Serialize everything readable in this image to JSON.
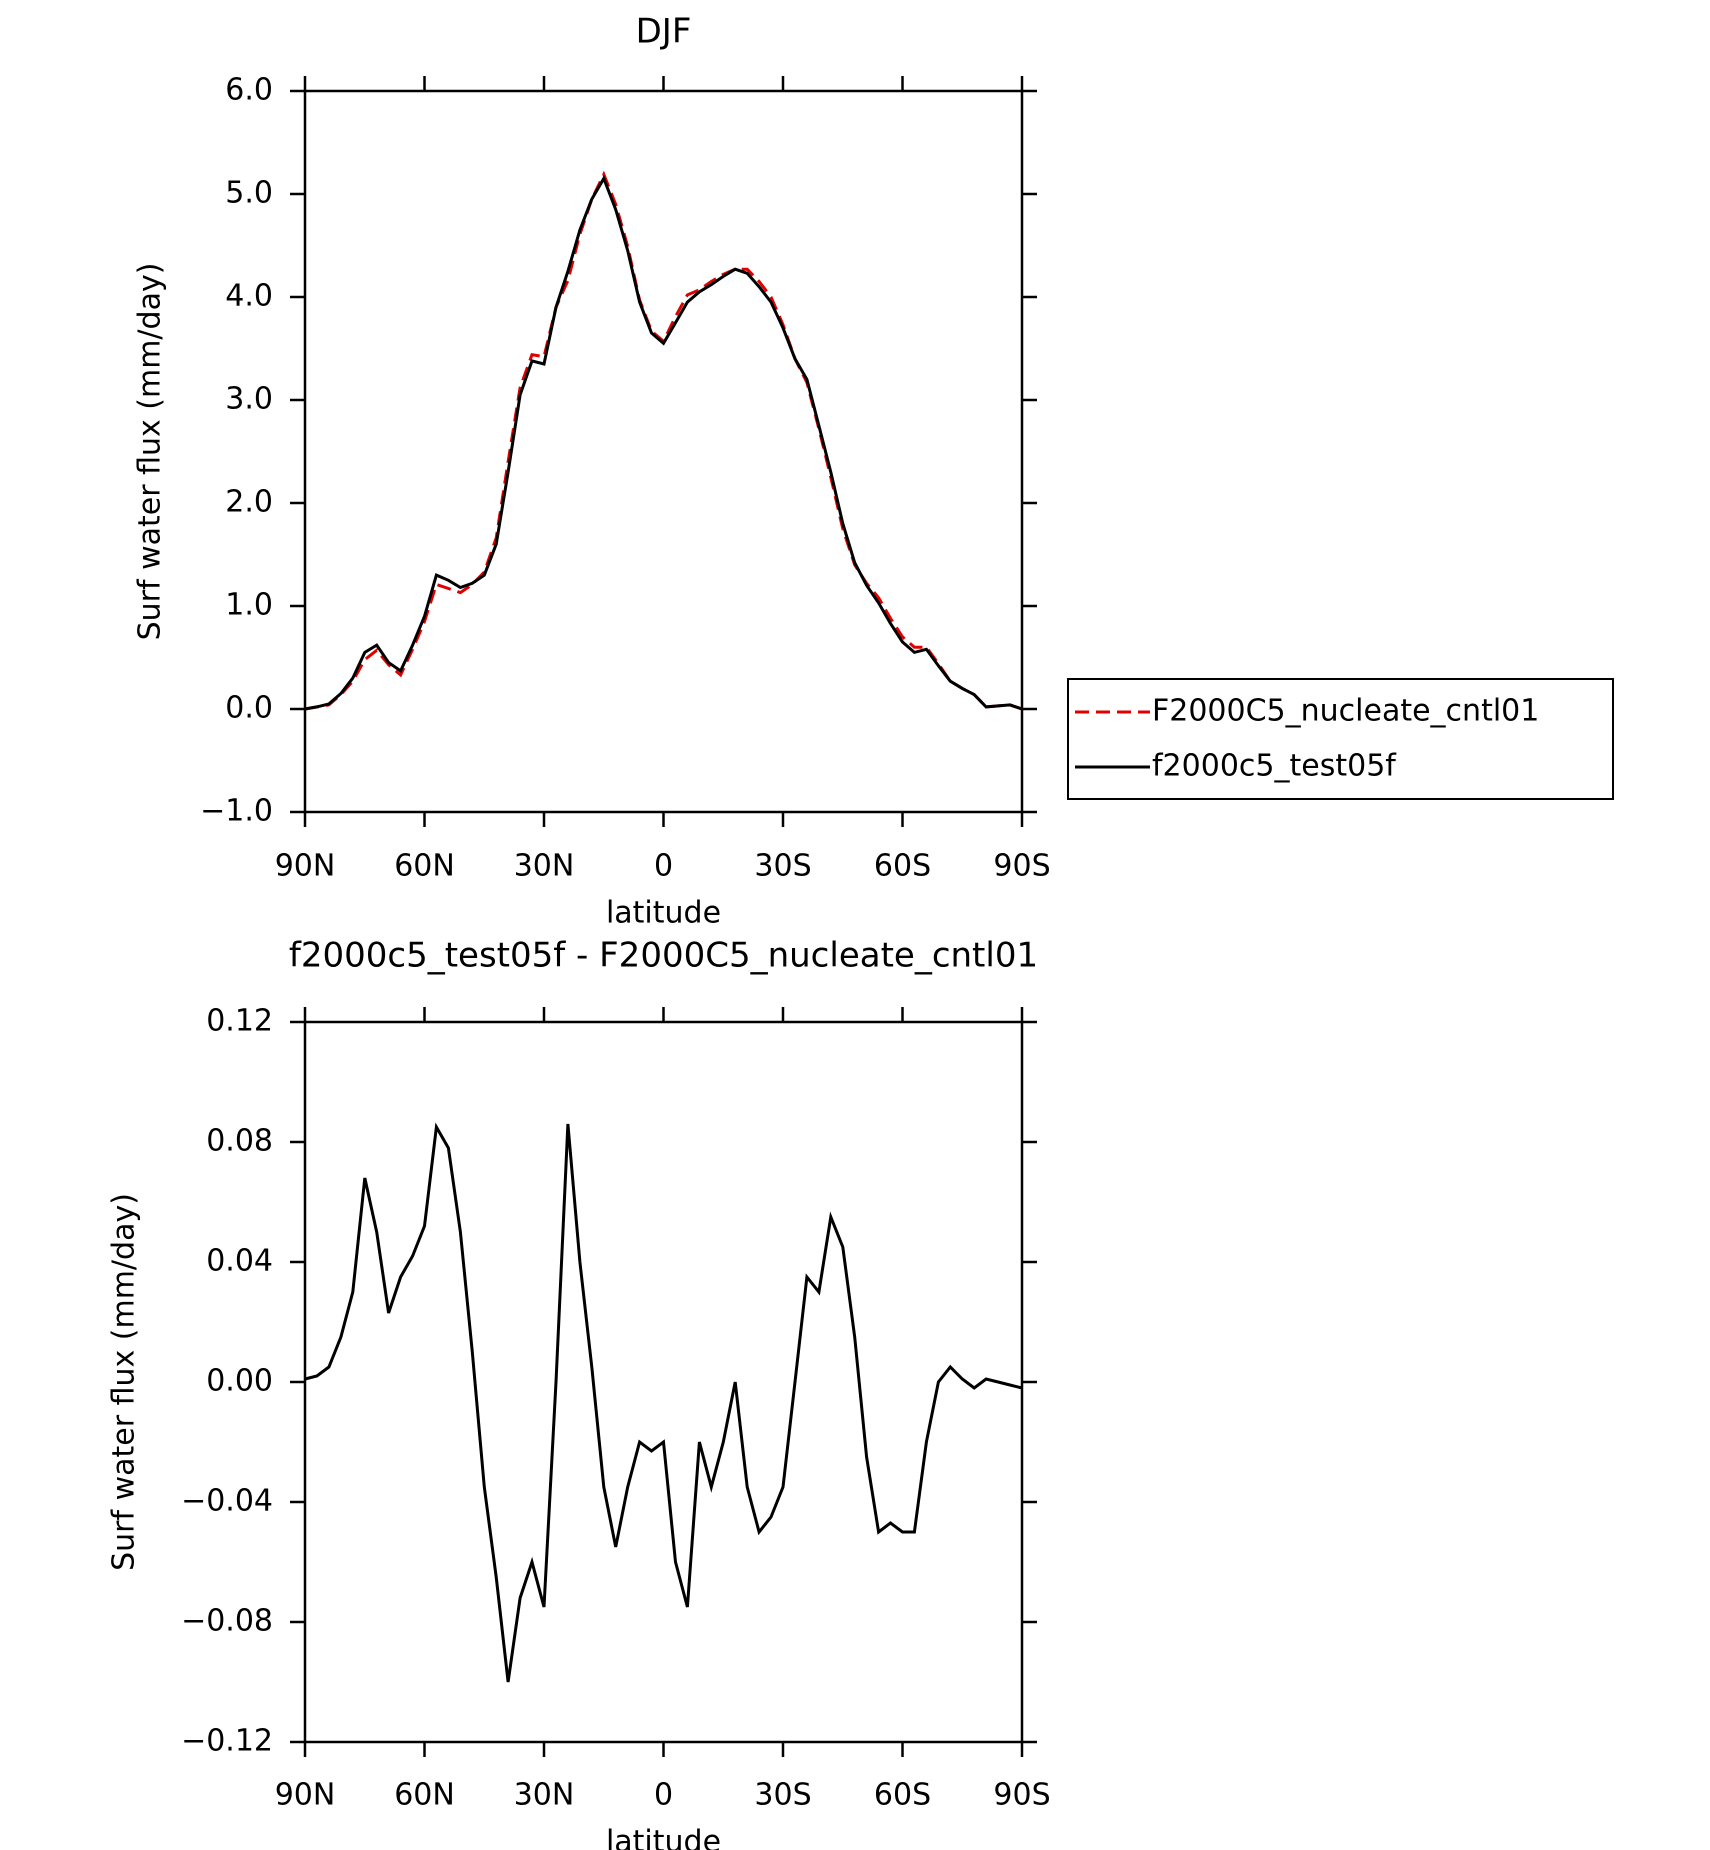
{
  "chart_data": [
    {
      "type": "line",
      "title": "DJF",
      "ylabel": "Surf water flux (mm/day)",
      "xlabel": "latitude",
      "x": [
        90,
        87,
        84,
        81,
        78,
        75,
        72,
        69,
        66,
        63,
        60,
        57,
        54,
        51,
        48,
        45,
        42,
        39,
        36,
        33,
        30,
        27,
        24,
        21,
        18,
        15,
        12,
        9,
        6,
        3,
        0,
        -3,
        -6,
        -9,
        -12,
        -15,
        -18,
        -21,
        -24,
        -27,
        -30,
        -33,
        -36,
        -39,
        -42,
        -45,
        -48,
        -51,
        -54,
        -57,
        -60,
        -63,
        -66,
        -69,
        -72,
        -75,
        -78,
        -81,
        -84,
        -87,
        -90
      ],
      "xlim": [
        90,
        -90
      ],
      "xticks": [
        {
          "value": 90,
          "label": "90N"
        },
        {
          "value": 60,
          "label": "60N"
        },
        {
          "value": 30,
          "label": "30N"
        },
        0,
        {
          "value": -30,
          "label": "30S"
        },
        {
          "value": -60,
          "label": "60S"
        },
        {
          "value": -90,
          "label": "90S"
        }
      ],
      "ylim": [
        -1,
        6
      ],
      "yticks": [
        {
          "value": -1,
          "label": "−1.0"
        },
        {
          "value": 0,
          "label": "0.0"
        },
        {
          "value": 1,
          "label": "1.0"
        },
        {
          "value": 2,
          "label": "2.0"
        },
        {
          "value": 3,
          "label": "3.0"
        },
        {
          "value": 4,
          "label": "4.0"
        },
        {
          "value": 5,
          "label": "5.0"
        },
        {
          "value": 6,
          "label": "6.0"
        }
      ],
      "legend": "right",
      "series": [
        {
          "name": "F2000C5_nucleate_cntl01",
          "color": "#e00000",
          "dash": true,
          "values": [
            0,
            0.02,
            0.04,
            0.14,
            0.27,
            0.48,
            0.57,
            0.43,
            0.33,
            0.58,
            0.85,
            1.21,
            1.17,
            1.13,
            1.21,
            1.33,
            1.66,
            2.4,
            3.12,
            3.44,
            3.42,
            3.9,
            4.16,
            4.61,
            4.95,
            5.19,
            4.9,
            4.49,
            3.97,
            3.67,
            3.57,
            3.81,
            4.02,
            4.07,
            4.15,
            4.22,
            4.27,
            4.27,
            4.15,
            4.0,
            3.73,
            3.4,
            3.17,
            2.72,
            2.25,
            1.75,
            1.4,
            1.22,
            1.08,
            0.88,
            0.7,
            0.6,
            0.6,
            0.44,
            0.27,
            0.2,
            0.14,
            0.02,
            0.03,
            0.04,
            0
          ]
        },
        {
          "name": "f2000c5_test05f",
          "color": "#000000",
          "dash": false,
          "values": [
            0,
            0.02,
            0.05,
            0.15,
            0.3,
            0.55,
            0.62,
            0.45,
            0.37,
            0.62,
            0.9,
            1.3,
            1.25,
            1.18,
            1.22,
            1.3,
            1.6,
            2.3,
            3.05,
            3.38,
            3.35,
            3.9,
            4.25,
            4.65,
            4.95,
            5.15,
            4.85,
            4.45,
            3.95,
            3.65,
            3.55,
            3.75,
            3.95,
            4.05,
            4.12,
            4.2,
            4.27,
            4.23,
            4.1,
            3.95,
            3.7,
            3.4,
            3.2,
            2.75,
            2.3,
            1.8,
            1.42,
            1.2,
            1.03,
            0.83,
            0.65,
            0.55,
            0.58,
            0.42,
            0.27,
            0.2,
            0.14,
            0.02,
            0.03,
            0.04,
            0
          ]
        }
      ]
    },
    {
      "type": "line",
      "title": "f2000c5_test05f - F2000C5_nucleate_cntl01",
      "ylabel": "Surf water flux (mm/day)",
      "xlabel": "latitude",
      "x": [
        90,
        87,
        84,
        81,
        78,
        75,
        72,
        69,
        66,
        63,
        60,
        57,
        54,
        51,
        48,
        45,
        42,
        39,
        36,
        33,
        30,
        27,
        24,
        21,
        18,
        15,
        12,
        9,
        6,
        3,
        0,
        -3,
        -6,
        -9,
        -12,
        -15,
        -18,
        -21,
        -24,
        -27,
        -30,
        -33,
        -36,
        -39,
        -42,
        -45,
        -48,
        -51,
        -54,
        -57,
        -60,
        -63,
        -66,
        -69,
        -72,
        -75,
        -78,
        -81,
        -84,
        -87,
        -90
      ],
      "xlim": [
        90,
        -90
      ],
      "xticks": [
        {
          "value": 90,
          "label": "90N"
        },
        {
          "value": 60,
          "label": "60N"
        },
        {
          "value": 30,
          "label": "30N"
        },
        0,
        {
          "value": -30,
          "label": "30S"
        },
        {
          "value": -60,
          "label": "60S"
        },
        {
          "value": -90,
          "label": "90S"
        }
      ],
      "ylim": [
        -0.12,
        0.12
      ],
      "yticks": [
        {
          "value": -0.12,
          "label": "−0.12"
        },
        {
          "value": -0.08,
          "label": "−0.08"
        },
        {
          "value": -0.04,
          "label": "−0.04"
        },
        {
          "value": 0,
          "label": "0.00"
        },
        0.04,
        0.08,
        0.12
      ],
      "series": [
        {
          "color": "#000000",
          "dash": false,
          "values": [
            0.001,
            0.002,
            0.005,
            0.015,
            0.03,
            0.068,
            0.05,
            0.023,
            0.035,
            0.042,
            0.052,
            0.085,
            0.078,
            0.05,
            0.01,
            -0.035,
            -0.065,
            -0.1,
            -0.072,
            -0.06,
            -0.075,
            0.0,
            0.086,
            0.04,
            0.005,
            -0.035,
            -0.055,
            -0.035,
            -0.02,
            -0.023,
            -0.02,
            -0.06,
            -0.075,
            -0.02,
            -0.035,
            -0.02,
            0.0,
            -0.035,
            -0.05,
            -0.045,
            -0.035,
            0.0,
            0.035,
            0.03,
            0.055,
            0.045,
            0.015,
            -0.025,
            -0.05,
            -0.047,
            -0.05,
            -0.05,
            -0.02,
            0.0,
            0.005,
            0.001,
            -0.002,
            0.001,
            0.0,
            -0.001,
            -0.002
          ]
        }
      ]
    }
  ]
}
